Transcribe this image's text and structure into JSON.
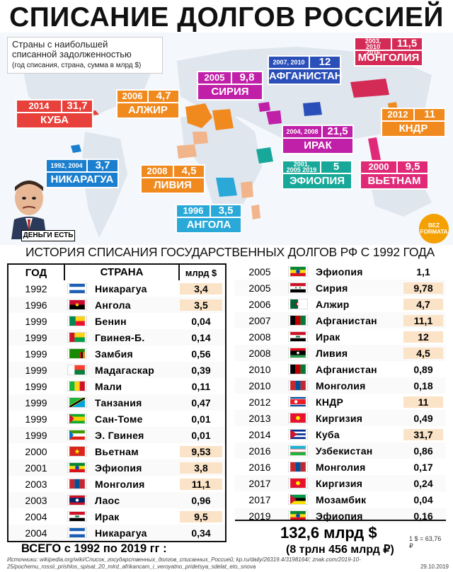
{
  "title": "СПИСАНИЕ ДОЛГОВ РОССИЕЙ",
  "legend": {
    "line1": "Страны с наибольшей",
    "line2": "списанной задолженностью",
    "line3": "(год списания, страна, сумма в млрд $)"
  },
  "map_boxes": [
    {
      "year": "2014",
      "amount": "31,7",
      "name": "КУБА",
      "color": "#e8403a"
    },
    {
      "year": "1992, 2004",
      "amount": "3,7",
      "name": "НИКАРАГУА",
      "color": "#1b7fd0"
    },
    {
      "year": "2006",
      "amount": "4,7",
      "name": "АЛЖИР",
      "color": "#f08a1f"
    },
    {
      "year": "2008",
      "amount": "4,5",
      "name": "ЛИВИЯ",
      "color": "#f08a1f"
    },
    {
      "year": "1996",
      "amount": "3,5",
      "name": "АНГОЛА",
      "color": "#2aa9d8"
    },
    {
      "year": "2005",
      "amount": "9,8",
      "name": "СИРИЯ",
      "color": "#c01fa8"
    },
    {
      "year": "2007, 2010",
      "amount": "12",
      "name": "АФГАНИСТАН",
      "color": "#2a4fb8"
    },
    {
      "year": "2004, 2008",
      "amount": "21,5",
      "name": "ИРАК",
      "color": "#c01fa8"
    },
    {
      "year": "2001, 2005 2019",
      "amount": "5",
      "name": "ЭФИОПИЯ",
      "color": "#18a89a"
    },
    {
      "year": "2003, 2010 2016",
      "amount": "11,5",
      "name": "МОНГОЛИЯ",
      "color": "#d42a56"
    },
    {
      "year": "2012",
      "amount": "11",
      "name": "КНДР",
      "color": "#f08a1f"
    },
    {
      "year": "2000",
      "amount": "9,5",
      "name": "ВЬЕТНАМ",
      "color": "#e02a78"
    }
  ],
  "caricature_label": "ДЕНЬГИ ЕСТЬ",
  "logo_text": "BEZ FORMATA",
  "subtitle": "ИСТОРИЯ СПИСАНИЯ ГОСУДАРСТВЕННЫХ ДОЛГОВ РФ С 1992 ГОДА",
  "table_headers": {
    "year": "ГОД",
    "country": "СТРАНА",
    "amount": "млрд $"
  },
  "rows_left": [
    {
      "year": "1992",
      "flag": "nicaragua",
      "country": "Никарагуа",
      "amount": "3,4",
      "hl": true
    },
    {
      "year": "1996",
      "flag": "angola",
      "country": "Ангола",
      "amount": "3,5",
      "hl": true
    },
    {
      "year": "1999",
      "flag": "benin",
      "country": "Бенин",
      "amount": "0,04",
      "hl": false
    },
    {
      "year": "1999",
      "flag": "guinea-bissau",
      "country": "Гвинея-Б.",
      "amount": "0,14",
      "hl": false
    },
    {
      "year": "1999",
      "flag": "zambia",
      "country": "Замбия",
      "amount": "0,56",
      "hl": false
    },
    {
      "year": "1999",
      "flag": "madagascar",
      "country": "Мадагаскар",
      "amount": "0,39",
      "hl": false
    },
    {
      "year": "1999",
      "flag": "mali",
      "country": "Мали",
      "amount": "0,11",
      "hl": false
    },
    {
      "year": "1999",
      "flag": "tanzania",
      "country": "Танзания",
      "amount": "0,47",
      "hl": false
    },
    {
      "year": "1999",
      "flag": "sao-tome",
      "country": "Сан-Томе",
      "amount": "0,01",
      "hl": false
    },
    {
      "year": "1999",
      "flag": "eq-guinea",
      "country": "Э. Гвинея",
      "amount": "0,01",
      "hl": false
    },
    {
      "year": "2000",
      "flag": "vietnam",
      "country": "Вьетнам",
      "amount": "9,53",
      "hl": true
    },
    {
      "year": "2001",
      "flag": "ethiopia",
      "country": "Эфиопия",
      "amount": "3,8",
      "hl": true
    },
    {
      "year": "2003",
      "flag": "mongolia",
      "country": "Монголия",
      "amount": "11,1",
      "hl": true
    },
    {
      "year": "2003",
      "flag": "laos",
      "country": "Лаос",
      "amount": "0,96",
      "hl": false
    },
    {
      "year": "2004",
      "flag": "iraq",
      "country": "Ирак",
      "amount": "9,5",
      "hl": true
    },
    {
      "year": "2004",
      "flag": "nicaragua",
      "country": "Никарагуа",
      "amount": "0,34",
      "hl": false
    }
  ],
  "rows_right": [
    {
      "year": "2005",
      "flag": "ethiopia",
      "country": "Эфиопия",
      "amount": "1,1",
      "hl": false
    },
    {
      "year": "2005",
      "flag": "syria",
      "country": "Сирия",
      "amount": "9,78",
      "hl": true
    },
    {
      "year": "2006",
      "flag": "algeria",
      "country": "Алжир",
      "amount": "4,7",
      "hl": true
    },
    {
      "year": "2007",
      "flag": "afghanistan",
      "country": "Афганистан",
      "amount": "11,1",
      "hl": true
    },
    {
      "year": "2008",
      "flag": "iraq",
      "country": "Ирак",
      "amount": "12",
      "hl": true
    },
    {
      "year": "2008",
      "flag": "libya",
      "country": "Ливия",
      "amount": "4,5",
      "hl": true
    },
    {
      "year": "2010",
      "flag": "afghanistan",
      "country": "Афганистан",
      "amount": "0,89",
      "hl": false
    },
    {
      "year": "2010",
      "flag": "mongolia",
      "country": "Монголия",
      "amount": "0,18",
      "hl": false
    },
    {
      "year": "2012",
      "flag": "dprk",
      "country": "КНДР",
      "amount": "11",
      "hl": true
    },
    {
      "year": "2013",
      "flag": "kyrgyzstan",
      "country": "Киргизия",
      "amount": "0,49",
      "hl": false
    },
    {
      "year": "2014",
      "flag": "cuba",
      "country": "Куба",
      "amount": "31,7",
      "hl": true
    },
    {
      "year": "2016",
      "flag": "uzbekistan",
      "country": "Узбекистан",
      "amount": "0,86",
      "hl": false
    },
    {
      "year": "2016",
      "flag": "mongolia",
      "country": "Монголия",
      "amount": "0,17",
      "hl": false
    },
    {
      "year": "2017",
      "flag": "kyrgyzstan",
      "country": "Киргизия",
      "amount": "0,24",
      "hl": false
    },
    {
      "year": "2017",
      "flag": "mozambique",
      "country": "Мозамбик",
      "amount": "0,04",
      "hl": false
    },
    {
      "year": "2019",
      "flag": "ethiopia",
      "country": "Эфиопия",
      "amount": "0,16",
      "hl": false
    }
  ],
  "total": {
    "label": "ВСЕГО с 1992 по 2019 гг :",
    "sum": "132,6 млрд $",
    "sub": "(8 трлн 456 млрд ₽)",
    "rate": "1 $ = 63,76 ₽"
  },
  "sources": "Источники: wikipedia.org/wiki/Список_государственных_долгов_списанных_Россией; kp.ru/daily/26319.4/3198164/; znak.com/2019-10-25/pochemu_rossii_prishlos_spisat_20_mlrd_afrikancam_i_veroyatno_pridetsya_sdelat_eto_snova",
  "date": "29.10.2019"
}
